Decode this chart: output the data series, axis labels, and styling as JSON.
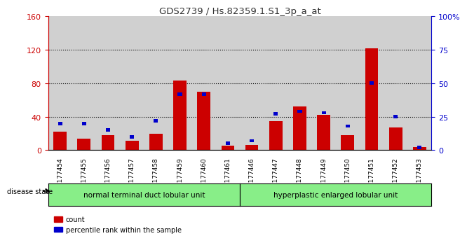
{
  "title": "GDS2739 / Hs.82359.1.S1_3p_a_at",
  "samples": [
    "GSM177454",
    "GSM177455",
    "GSM177456",
    "GSM177457",
    "GSM177458",
    "GSM177459",
    "GSM177460",
    "GSM177461",
    "GSM177446",
    "GSM177447",
    "GSM177448",
    "GSM177449",
    "GSM177450",
    "GSM177451",
    "GSM177452",
    "GSM177453"
  ],
  "count_values": [
    22,
    14,
    18,
    11,
    20,
    83,
    70,
    5,
    6,
    35,
    52,
    42,
    18,
    122,
    27,
    4
  ],
  "percentile_values": [
    20,
    20,
    15,
    10,
    22,
    42,
    42,
    5,
    7,
    27,
    29,
    28,
    18,
    50,
    25,
    2
  ],
  "group1_label": "normal terminal duct lobular unit",
  "group2_label": "hyperplastic enlarged lobular unit",
  "group1_count": 8,
  "group2_count": 8,
  "ylim_left": [
    0,
    160
  ],
  "ylim_right": [
    0,
    100
  ],
  "yticks_left": [
    0,
    40,
    80,
    120,
    160
  ],
  "ytick_labels_left": [
    "0",
    "40",
    "80",
    "120",
    "160"
  ],
  "yticks_right": [
    0,
    25,
    50,
    75,
    100
  ],
  "ytick_labels_right": [
    "0",
    "25",
    "50",
    "75",
    "100%"
  ],
  "red_color": "#cc0000",
  "blue_color": "#0000cc",
  "bar_bg_color": "#d0d0d0",
  "group_bg": "#88ee88",
  "title_color": "#333333",
  "left_axis_color": "#cc0000",
  "right_axis_color": "#0000cc",
  "legend_count_label": "count",
  "legend_pct_label": "percentile rank within the sample"
}
